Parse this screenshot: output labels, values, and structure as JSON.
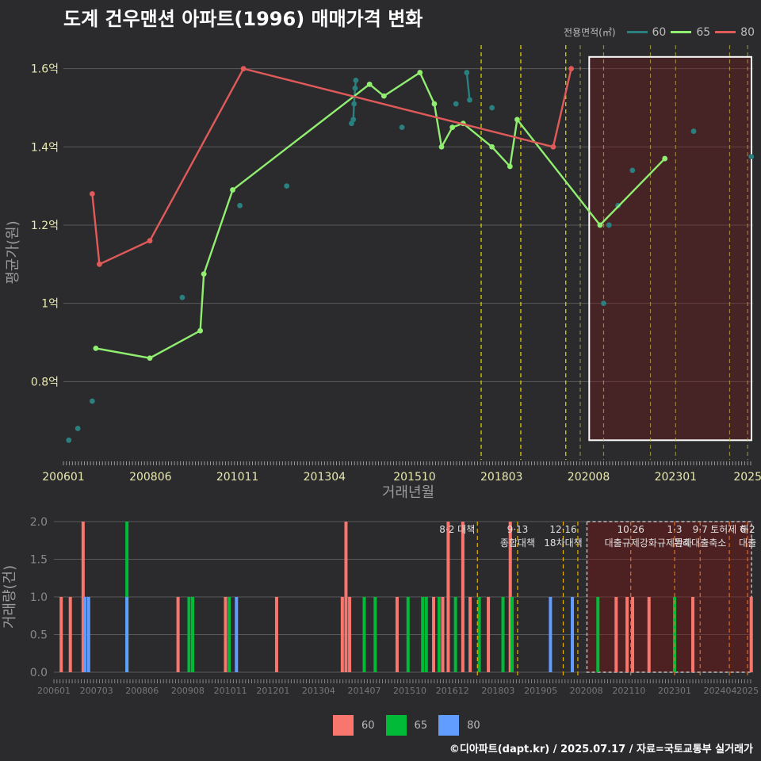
{
  "title": "도계 건우맨션 아파트(1996) 매매가격 변화",
  "legend": {
    "title": "전용면적(㎡)",
    "items": [
      {
        "label": "60",
        "color": "#2a7f7f"
      },
      {
        "label": "65",
        "color": "#90ee70"
      },
      {
        "label": "80",
        "color": "#e05a5a"
      }
    ]
  },
  "bar_legend": [
    {
      "label": "60",
      "color": "#f8766d"
    },
    {
      "label": "65",
      "color": "#00ba38"
    },
    {
      "label": "80",
      "color": "#619cff"
    }
  ],
  "footer": "©디아파트(dapt.kr) / 2025.07.17 / 자료=국토교통부 실거래가",
  "chart_data": [
    {
      "type": "line",
      "title": "도계 건우맨션 아파트(1996) 매매가격 변화",
      "xlabel": "거래년월",
      "ylabel": "평균가(원)",
      "xlim": [
        2006.0,
        2025.15
      ],
      "ylim": [
        0.6,
        1.66
      ],
      "x_ticks": [
        {
          "value": 2006.0,
          "label": "200601"
        },
        {
          "value": 2008.4167,
          "label": "200806"
        },
        {
          "value": 2010.8333,
          "label": "201011"
        },
        {
          "value": 2013.25,
          "label": "201304"
        },
        {
          "value": 2015.75,
          "label": "201510"
        },
        {
          "value": 2018.1667,
          "label": "201803"
        },
        {
          "value": 2020.5833,
          "label": "202008"
        },
        {
          "value": 2023.0,
          "label": "202301"
        },
        {
          "value": 2025.0,
          "label": "2025"
        }
      ],
      "y_ticks": [
        {
          "value": 0.8,
          "label": "0.8억"
        },
        {
          "value": 1.0,
          "label": "1억"
        },
        {
          "value": 1.2,
          "label": "1.2억"
        },
        {
          "value": 1.4,
          "label": "1.4억"
        },
        {
          "value": 1.6,
          "label": "1.6억"
        }
      ],
      "series": [
        {
          "name": "60",
          "color": "#2a7f7f",
          "points": [
            [
              2006.15,
              0.65
            ],
            [
              2006.4,
              0.68
            ],
            [
              2006.8,
              0.75
            ],
            [
              2009.3,
              1.015
            ],
            [
              2010.9,
              1.25
            ],
            [
              2012.2,
              1.3
            ],
            [
              2014.0,
              1.46
            ],
            [
              2014.05,
              1.47
            ],
            [
              2014.07,
              1.51
            ],
            [
              2014.1,
              1.55
            ],
            [
              2014.12,
              1.57
            ],
            [
              2015.4,
              1.45
            ],
            [
              2016.9,
              1.51
            ],
            [
              2017.2,
              1.59
            ],
            [
              2017.28,
              1.52
            ],
            [
              2017.9,
              1.5
            ],
            [
              2021.0,
              1.0
            ],
            [
              2021.15,
              1.2
            ],
            [
              2021.4,
              1.25
            ],
            [
              2021.8,
              1.34
            ],
            [
              2023.5,
              1.44
            ],
            [
              2025.1,
              1.375
            ]
          ],
          "lines": [
            [
              [
                2014.0,
                1.46
              ],
              [
                2014.05,
                1.47
              ],
              [
                2014.07,
                1.51
              ],
              [
                2014.1,
                1.55
              ],
              [
                2014.12,
                1.57
              ]
            ],
            [
              [
                2017.2,
                1.59
              ],
              [
                2017.28,
                1.52
              ]
            ]
          ]
        },
        {
          "name": "65",
          "color": "#90ee70",
          "points": [
            [
              2006.9,
              0.885
            ],
            [
              2008.4,
              0.86
            ],
            [
              2009.8,
              0.93
            ],
            [
              2009.9,
              1.075
            ],
            [
              2010.7,
              1.29
            ],
            [
              2014.5,
              1.56
            ],
            [
              2014.9,
              1.53
            ],
            [
              2015.9,
              1.59
            ],
            [
              2016.3,
              1.51
            ],
            [
              2016.5,
              1.4
            ],
            [
              2016.8,
              1.45
            ],
            [
              2017.1,
              1.46
            ],
            [
              2017.9,
              1.4
            ],
            [
              2018.4,
              1.35
            ],
            [
              2018.6,
              1.47
            ],
            [
              2020.9,
              1.2
            ],
            [
              2022.7,
              1.37
            ]
          ],
          "lines": [
            [
              [
                2006.9,
                0.885
              ],
              [
                2008.4,
                0.86
              ],
              [
                2009.8,
                0.93
              ],
              [
                2009.9,
                1.075
              ],
              [
                2010.7,
                1.29
              ],
              [
                2014.5,
                1.56
              ],
              [
                2014.9,
                1.53
              ],
              [
                2015.9,
                1.59
              ],
              [
                2016.3,
                1.51
              ],
              [
                2016.5,
                1.4
              ],
              [
                2016.8,
                1.45
              ],
              [
                2017.1,
                1.46
              ],
              [
                2017.9,
                1.4
              ],
              [
                2018.4,
                1.35
              ],
              [
                2018.6,
                1.47
              ],
              [
                2020.9,
                1.2
              ],
              [
                2022.7,
                1.37
              ]
            ]
          ]
        },
        {
          "name": "80",
          "color": "#e05a5a",
          "points": [
            [
              2006.8,
              1.28
            ],
            [
              2007.0,
              1.1
            ],
            [
              2008.4,
              1.16
            ],
            [
              2011.0,
              1.6
            ],
            [
              2019.6,
              1.4
            ],
            [
              2020.1,
              1.6
            ]
          ],
          "lines": [
            [
              [
                2006.8,
                1.28
              ],
              [
                2007.0,
                1.1
              ],
              [
                2008.4,
                1.16
              ],
              [
                2011.0,
                1.6
              ],
              [
                2019.6,
                1.4
              ],
              [
                2020.1,
                1.6
              ]
            ]
          ]
        }
      ],
      "policy_dates": [
        2017.6,
        2018.7,
        2019.95,
        2020.35,
        2021.0,
        2022.3,
        2023.0,
        2024.5,
        2025.0
      ],
      "highlight_range": [
        2020.6,
        2025.15
      ]
    },
    {
      "type": "bar",
      "ylabel": "거래량(건)",
      "xlim": [
        2006.0,
        2025.15
      ],
      "ylim": [
        0,
        2
      ],
      "y_ticks": [
        {
          "value": 0,
          "label": "0.0"
        },
        {
          "value": 0.5,
          "label": "0.5"
        },
        {
          "value": 1.0,
          "label": "1.0"
        },
        {
          "value": 1.5,
          "label": "1.5"
        },
        {
          "value": 2.0,
          "label": "2.0"
        }
      ],
      "x_ticks": [
        {
          "value": 2006.0,
          "label": "200601"
        },
        {
          "value": 2007.1667,
          "label": "200703"
        },
        {
          "value": 2008.4167,
          "label": "200806"
        },
        {
          "value": 2009.6667,
          "label": "200908"
        },
        {
          "value": 2010.8333,
          "label": "201011"
        },
        {
          "value": 2012.0,
          "label": "201201"
        },
        {
          "value": 2013.25,
          "label": "201304"
        },
        {
          "value": 2014.5,
          "label": "201407"
        },
        {
          "value": 2015.75,
          "label": "201510"
        },
        {
          "value": 2016.9167,
          "label": "201612"
        },
        {
          "value": 2018.1667,
          "label": "201803"
        },
        {
          "value": 2019.3333,
          "label": "201905"
        },
        {
          "value": 2020.5833,
          "label": "202008"
        },
        {
          "value": 2021.75,
          "label": "202110"
        },
        {
          "value": 2023.0,
          "label": "202301"
        },
        {
          "value": 2024.25,
          "label": "202404"
        },
        {
          "value": 2025.0,
          "label": "2025"
        }
      ],
      "bars": [
        {
          "x": 2006.2,
          "value": 1,
          "group": "60"
        },
        {
          "x": 2006.45,
          "value": 1,
          "group": "60"
        },
        {
          "x": 2006.8,
          "value": 2,
          "group": "60"
        },
        {
          "x": 2006.85,
          "value": 1,
          "group": "80"
        },
        {
          "x": 2006.95,
          "value": 1,
          "group": "80"
        },
        {
          "x": 2008.0,
          "value": 2,
          "group": "65"
        },
        {
          "x": 2008.0,
          "value": 1,
          "group": "80"
        },
        {
          "x": 2009.4,
          "value": 1,
          "group": "60"
        },
        {
          "x": 2009.7,
          "value": 1,
          "group": "65"
        },
        {
          "x": 2009.8,
          "value": 1,
          "group": "65"
        },
        {
          "x": 2010.7,
          "value": 1,
          "group": "60"
        },
        {
          "x": 2010.8,
          "value": 1,
          "group": "65"
        },
        {
          "x": 2011.0,
          "value": 1,
          "group": "80"
        },
        {
          "x": 2012.1,
          "value": 1,
          "group": "60"
        },
        {
          "x": 2013.9,
          "value": 1,
          "group": "60"
        },
        {
          "x": 2014.0,
          "value": 2,
          "group": "60"
        },
        {
          "x": 2014.1,
          "value": 1,
          "group": "60"
        },
        {
          "x": 2014.5,
          "value": 1,
          "group": "65"
        },
        {
          "x": 2014.8,
          "value": 1,
          "group": "65"
        },
        {
          "x": 2015.4,
          "value": 1,
          "group": "60"
        },
        {
          "x": 2015.7,
          "value": 1,
          "group": "65"
        },
        {
          "x": 2016.1,
          "value": 1,
          "group": "65"
        },
        {
          "x": 2016.2,
          "value": 1,
          "group": "65"
        },
        {
          "x": 2016.4,
          "value": 1,
          "group": "60"
        },
        {
          "x": 2016.55,
          "value": 1,
          "group": "65"
        },
        {
          "x": 2016.65,
          "value": 1,
          "group": "60"
        },
        {
          "x": 2016.8,
          "value": 2,
          "group": "60"
        },
        {
          "x": 2017.0,
          "value": 1,
          "group": "65"
        },
        {
          "x": 2017.2,
          "value": 2,
          "group": "60"
        },
        {
          "x": 2017.4,
          "value": 1,
          "group": "60"
        },
        {
          "x": 2017.65,
          "value": 1,
          "group": "65"
        },
        {
          "x": 2017.9,
          "value": 1,
          "group": "60"
        },
        {
          "x": 2018.3,
          "value": 1,
          "group": "65"
        },
        {
          "x": 2018.5,
          "value": 2,
          "group": "60"
        },
        {
          "x": 2018.55,
          "value": 1,
          "group": "65"
        },
        {
          "x": 2019.6,
          "value": 1,
          "group": "80"
        },
        {
          "x": 2020.2,
          "value": 1,
          "group": "80"
        },
        {
          "x": 2020.9,
          "value": 1,
          "group": "65"
        },
        {
          "x": 2021.4,
          "value": 1,
          "group": "60"
        },
        {
          "x": 2021.7,
          "value": 1,
          "group": "60"
        },
        {
          "x": 2021.85,
          "value": 1,
          "group": "60"
        },
        {
          "x": 2022.3,
          "value": 1,
          "group": "60"
        },
        {
          "x": 2023.0,
          "value": 1,
          "group": "65"
        },
        {
          "x": 2023.5,
          "value": 1,
          "group": "60"
        },
        {
          "x": 2025.1,
          "value": 1,
          "group": "60"
        }
      ],
      "policies": [
        {
          "x": 2017.6,
          "labels": [
            "8·2 대책"
          ]
        },
        {
          "x": 2018.7,
          "labels": [
            "9·13",
            "종합대책"
          ]
        },
        {
          "x": 2019.95,
          "labels": [
            "12·16",
            "18차대책"
          ]
        },
        {
          "x": 2020.35,
          "labels": []
        },
        {
          "x": 2021.8,
          "labels": [
            "10·26",
            "대출규제강화"
          ]
        },
        {
          "x": 2023.0,
          "labels": [
            "1·3",
            "규제완화"
          ]
        },
        {
          "x": 2023.7,
          "labels": [
            "9·7",
            "특례대출축소"
          ]
        },
        {
          "x": 2024.5,
          "labels": [
            "토허제 해"
          ]
        },
        {
          "x": 2025.0,
          "labels": [
            "6·2",
            "대출"
          ]
        }
      ],
      "highlight_range": [
        2020.6,
        2025.15
      ]
    }
  ]
}
